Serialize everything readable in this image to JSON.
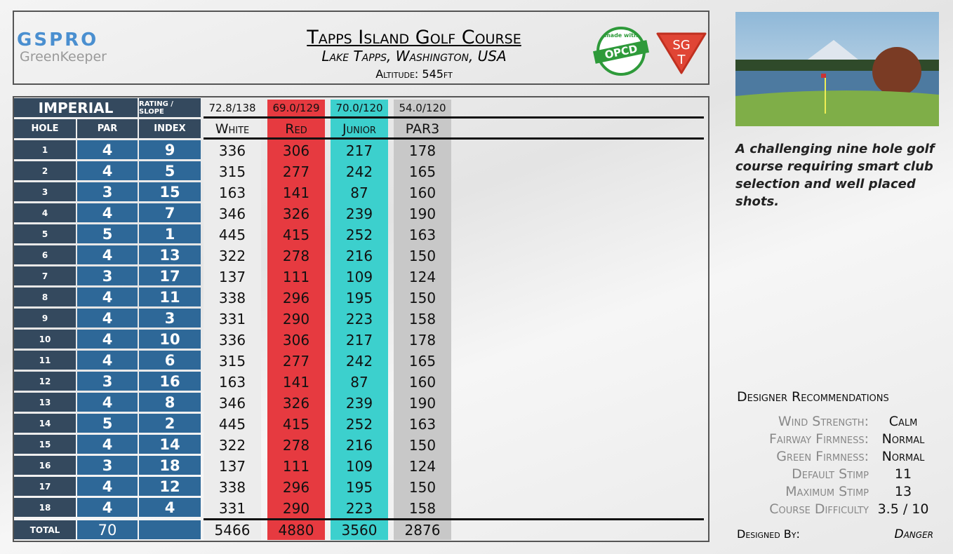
{
  "logo": {
    "brand": "GSPRO",
    "product": "GreenKeeper"
  },
  "header": {
    "title": "Tapps Island Golf Course",
    "location": "Lake Tapps, Washington, USA",
    "altitude": "Altitude: 545ft"
  },
  "badges": {
    "made_with": "made with",
    "opcd": "OPCD",
    "sg": "SG",
    "t": "T"
  },
  "table": {
    "unit": "IMPERIAL",
    "rating_label": "RATING / SLOPE",
    "columns": [
      "HOLE",
      "PAR",
      "INDEX"
    ],
    "tees": [
      {
        "name": "White",
        "rating": "72.8/138",
        "color": "#ececec",
        "text": "#111"
      },
      {
        "name": "Red",
        "rating": "69.0/129",
        "color": "#e63a40",
        "text": "#111"
      },
      {
        "name": "Junior",
        "rating": "70.0/120",
        "color": "#3cd0cd",
        "text": "#111"
      },
      {
        "name": "PAR3",
        "rating": "54.0/120",
        "color": "#c8c8c8",
        "text": "#111"
      }
    ],
    "rows": [
      [
        1,
        4,
        9,
        336,
        306,
        217,
        178
      ],
      [
        2,
        4,
        5,
        315,
        277,
        242,
        165
      ],
      [
        3,
        3,
        15,
        163,
        141,
        87,
        160
      ],
      [
        4,
        4,
        7,
        346,
        326,
        239,
        190
      ],
      [
        5,
        5,
        1,
        445,
        415,
        252,
        163
      ],
      [
        6,
        4,
        13,
        322,
        278,
        216,
        150
      ],
      [
        7,
        3,
        17,
        137,
        111,
        109,
        124
      ],
      [
        8,
        4,
        11,
        338,
        296,
        195,
        150
      ],
      [
        9,
        4,
        3,
        331,
        290,
        223,
        158
      ],
      [
        10,
        4,
        10,
        336,
        306,
        217,
        178
      ],
      [
        11,
        4,
        6,
        315,
        277,
        242,
        165
      ],
      [
        12,
        3,
        16,
        163,
        141,
        87,
        160
      ],
      [
        13,
        4,
        8,
        346,
        326,
        239,
        190
      ],
      [
        14,
        5,
        2,
        445,
        415,
        252,
        163
      ],
      [
        15,
        4,
        14,
        322,
        278,
        216,
        150
      ],
      [
        16,
        3,
        18,
        137,
        111,
        109,
        124
      ],
      [
        17,
        4,
        12,
        338,
        296,
        195,
        150
      ],
      [
        18,
        4,
        4,
        331,
        290,
        223,
        158
      ]
    ],
    "total": {
      "label": "TOTAL",
      "par": 70,
      "yards": [
        5466,
        4880,
        3560,
        2876
      ]
    }
  },
  "description": "A challenging nine hole golf course requiring smart club selection and well placed shots.",
  "recommendations": {
    "title": "Designer Recommendations",
    "items": [
      {
        "label": "Wind Strength:",
        "value": "Calm"
      },
      {
        "label": "Fairway Firmness:",
        "value": "Normal"
      },
      {
        "label": "Green Firmness:",
        "value": "Normal"
      },
      {
        "label": "Default Stimp",
        "value": "11"
      },
      {
        "label": "Maximum Stimp",
        "value": "13"
      },
      {
        "label": "Course Difficulty",
        "value": "3.5 / 10"
      }
    ],
    "designed_by_label": "Designed By:",
    "designed_by": "Danger"
  }
}
